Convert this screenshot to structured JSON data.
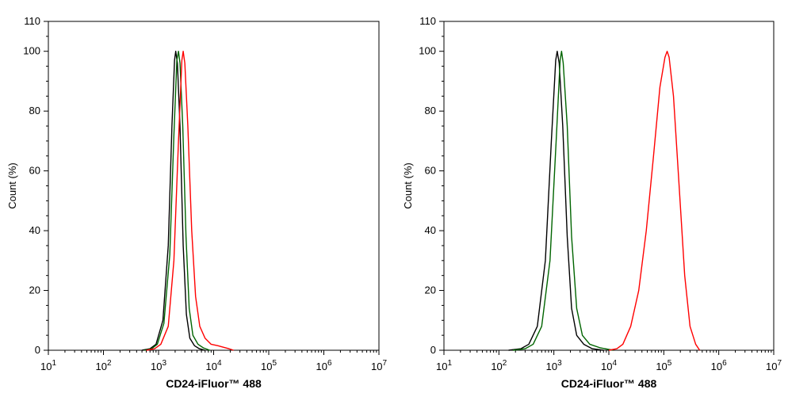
{
  "chart_data": [
    {
      "type": "line",
      "xscale": "log",
      "xlabel": "CD24-iFluor™ 488",
      "ylabel": "Count  (%)",
      "xlim": [
        10,
        10000000
      ],
      "ylim": [
        0,
        110
      ],
      "xticks": [
        {
          "base": "10",
          "exp": "1"
        },
        {
          "base": "10",
          "exp": "2"
        },
        {
          "base": "10",
          "exp": "3"
        },
        {
          "base": "10",
          "exp": "4"
        },
        {
          "base": "10",
          "exp": "5"
        },
        {
          "base": "10",
          "exp": "6"
        },
        {
          "base": "10",
          "exp": "7"
        }
      ],
      "yticks": [
        "0",
        "20",
        "40",
        "60",
        "80",
        "100",
        "110"
      ],
      "series": [
        {
          "color": "#000000",
          "points": [
            [
              500,
              0
            ],
            [
              700,
              0.5
            ],
            [
              900,
              2
            ],
            [
              1200,
              10
            ],
            [
              1500,
              35
            ],
            [
              1750,
              75
            ],
            [
              1950,
              97
            ],
            [
              2050,
              100
            ],
            [
              2200,
              96
            ],
            [
              2450,
              75
            ],
            [
              2800,
              35
            ],
            [
              3200,
              12
            ],
            [
              3700,
              4
            ],
            [
              4500,
              1.5
            ],
            [
              5500,
              0.5
            ],
            [
              7000,
              0
            ]
          ]
        },
        {
          "color": "#006400",
          "points": [
            [
              550,
              0
            ],
            [
              750,
              0.5
            ],
            [
              950,
              2
            ],
            [
              1250,
              9
            ],
            [
              1600,
              32
            ],
            [
              1900,
              72
            ],
            [
              2150,
              97
            ],
            [
              2300,
              100
            ],
            [
              2450,
              96
            ],
            [
              2750,
              75
            ],
            [
              3150,
              38
            ],
            [
              3600,
              14
            ],
            [
              4200,
              5
            ],
            [
              5200,
              2
            ],
            [
              6500,
              0.8
            ],
            [
              8500,
              0
            ]
          ]
        },
        {
          "color": "#ff0000",
          "points": [
            [
              600,
              0
            ],
            [
              850,
              0.5
            ],
            [
              1100,
              2
            ],
            [
              1500,
              8
            ],
            [
              1900,
              30
            ],
            [
              2300,
              70
            ],
            [
              2650,
              97
            ],
            [
              2800,
              100
            ],
            [
              3000,
              96
            ],
            [
              3400,
              75
            ],
            [
              4000,
              40
            ],
            [
              4700,
              18
            ],
            [
              5600,
              8
            ],
            [
              7000,
              4
            ],
            [
              9000,
              2
            ],
            [
              12000,
              1.5
            ],
            [
              15000,
              1
            ],
            [
              19000,
              0.5
            ],
            [
              23000,
              0
            ]
          ]
        }
      ]
    },
    {
      "type": "line",
      "xscale": "log",
      "xlabel": "CD24-iFluor™ 488",
      "ylabel": "Count  (%)",
      "xlim": [
        10,
        10000000
      ],
      "ylim": [
        0,
        110
      ],
      "xticks": [
        {
          "base": "10",
          "exp": "1"
        },
        {
          "base": "10",
          "exp": "2"
        },
        {
          "base": "10",
          "exp": "3"
        },
        {
          "base": "10",
          "exp": "4"
        },
        {
          "base": "10",
          "exp": "5"
        },
        {
          "base": "10",
          "exp": "6"
        },
        {
          "base": "10",
          "exp": "7"
        }
      ],
      "yticks": [
        "0",
        "20",
        "40",
        "60",
        "80",
        "100",
        "110"
      ],
      "series": [
        {
          "color": "#000000",
          "points": [
            [
              150,
              0
            ],
            [
              250,
              0.5
            ],
            [
              350,
              2
            ],
            [
              500,
              8
            ],
            [
              700,
              30
            ],
            [
              900,
              70
            ],
            [
              1080,
              97
            ],
            [
              1150,
              100
            ],
            [
              1250,
              96
            ],
            [
              1450,
              75
            ],
            [
              1750,
              38
            ],
            [
              2100,
              14
            ],
            [
              2600,
              5
            ],
            [
              3500,
              2
            ],
            [
              5000,
              0.5
            ],
            [
              8000,
              0
            ]
          ]
        },
        {
          "color": "#006400",
          "points": [
            [
              180,
              0
            ],
            [
              300,
              0.5
            ],
            [
              420,
              2
            ],
            [
              600,
              8
            ],
            [
              850,
              30
            ],
            [
              1100,
              70
            ],
            [
              1300,
              97
            ],
            [
              1380,
              100
            ],
            [
              1480,
              96
            ],
            [
              1750,
              75
            ],
            [
              2100,
              38
            ],
            [
              2600,
              14
            ],
            [
              3300,
              5
            ],
            [
              4500,
              2
            ],
            [
              7000,
              0.8
            ],
            [
              12000,
              0
            ]
          ]
        },
        {
          "color": "#ff0000",
          "points": [
            [
              10000,
              0
            ],
            [
              14000,
              0.5
            ],
            [
              18000,
              2
            ],
            [
              25000,
              8
            ],
            [
              35000,
              20
            ],
            [
              48000,
              40
            ],
            [
              65000,
              65
            ],
            [
              85000,
              88
            ],
            [
              105000,
              98
            ],
            [
              115000,
              100
            ],
            [
              125000,
              98
            ],
            [
              150000,
              85
            ],
            [
              190000,
              55
            ],
            [
              240000,
              25
            ],
            [
              300000,
              8
            ],
            [
              380000,
              2
            ],
            [
              450000,
              0
            ]
          ]
        }
      ]
    }
  ]
}
